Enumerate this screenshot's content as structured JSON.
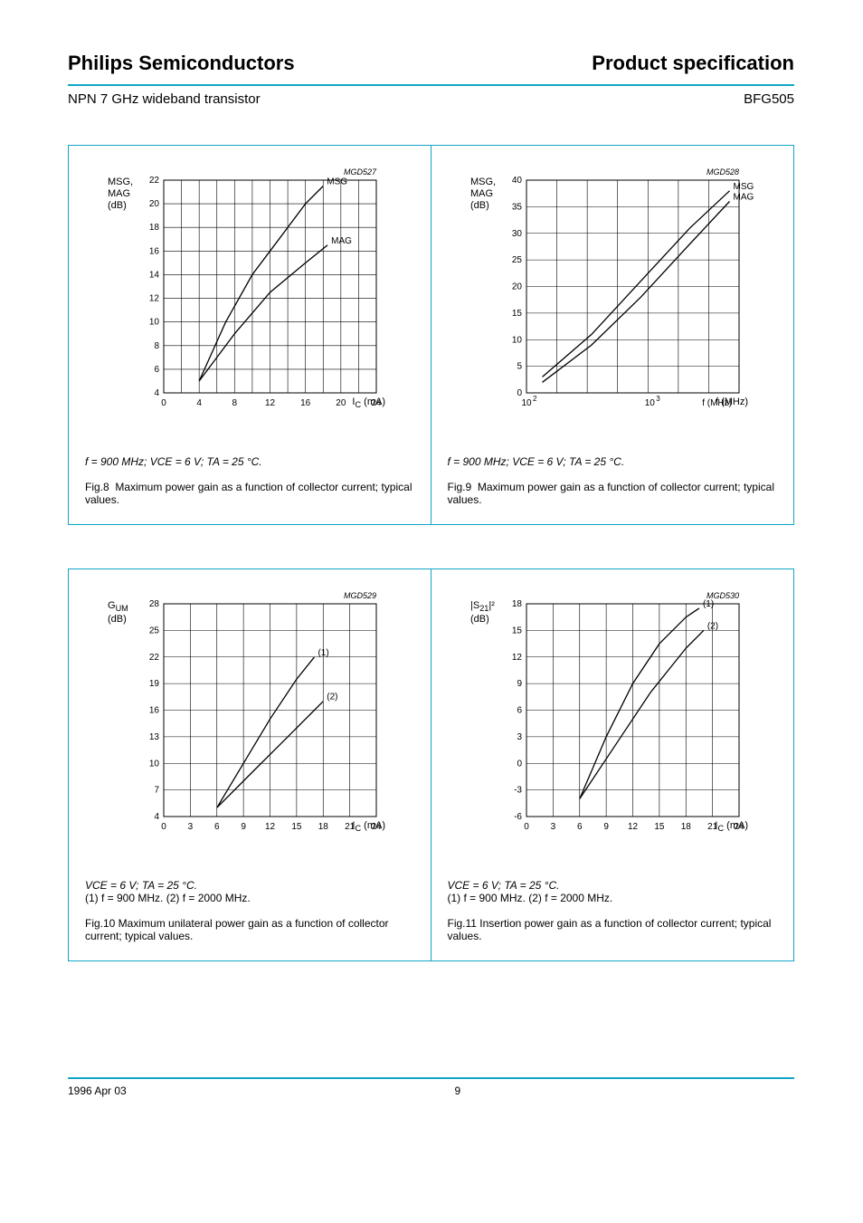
{
  "header": {
    "company": "Philips Semiconductors",
    "doc_type": "Product specification",
    "product_desc": "NPN 7 GHz wideband transistor",
    "part": "BFG505",
    "rule_color": "#11a6c7"
  },
  "footer": {
    "date": "1996 Apr 03",
    "page": "9"
  },
  "figs": [
    {
      "id": 8,
      "title_left_html": "MSG,<br>MAG<br>(dB)",
      "plot_ref": "MGD527",
      "x": {
        "label": "I_C (mA)",
        "min": 0,
        "max": 24,
        "step": 2
      },
      "y": {
        "min": 4,
        "max": 22,
        "step": 2
      },
      "grid_cols": 12,
      "grid_rows": 9,
      "curves": [
        {
          "label": "MSG",
          "points": [
            [
              4,
              5
            ],
            [
              7,
              10
            ],
            [
              10,
              14
            ],
            [
              13,
              17
            ],
            [
              16,
              20
            ],
            [
              18,
              21.5
            ]
          ]
        },
        {
          "label": "MAG",
          "points": [
            [
              4,
              5
            ],
            [
              8,
              9
            ],
            [
              12,
              12.5
            ],
            [
              16,
              15
            ],
            [
              18.5,
              16.5
            ]
          ]
        }
      ],
      "caption_html": "Fig.8  Maximum power gain as a function of collector current; typical values.",
      "conditions": "f = 900 MHz; VCE = 6 V; TA = 25 °C."
    },
    {
      "id": 9,
      "title_left_html": "MSG,<br>MAG<br>(dB)",
      "plot_ref": "MGD528",
      "x": {
        "label": "f (MHz)",
        "min": 200,
        "max": 4000,
        "log": true,
        "ticks": [
          "10^2",
          "10^3"
        ]
      },
      "y": {
        "min": 0,
        "max": 40,
        "step": 5
      },
      "grid_cols": 7,
      "grid_rows": 8,
      "curves": [
        {
          "label": "MSG",
          "points": [
            [
              250,
              3
            ],
            [
              500,
              11
            ],
            [
              1000,
              21
            ],
            [
              2000,
              31
            ],
            [
              3500,
              38
            ]
          ]
        },
        {
          "label": "MAG",
          "points": [
            [
              250,
              2
            ],
            [
              500,
              9
            ],
            [
              1000,
              18
            ],
            [
              2000,
              28
            ],
            [
              3500,
              36
            ]
          ]
        }
      ],
      "caption_html": "Fig.9  Maximum power gain as a function of collector current; typical values.",
      "conditions": "f = 900 MHz; VCE = 6 V; TA = 25 °C."
    },
    {
      "id": 10,
      "title_left_html": "G<sub>UM</sub><br>(dB)",
      "plot_ref": "MGD529",
      "x": {
        "label": "I_C (mA)",
        "min": 0,
        "max": 24,
        "step": 3
      },
      "y": {
        "min": 4,
        "max": 28,
        "step": 3
      },
      "grid_cols": 8,
      "grid_rows": 8,
      "curves": [
        {
          "label": "(1)",
          "points": [
            [
              6,
              5
            ],
            [
              9,
              10
            ],
            [
              12,
              15
            ],
            [
              15,
              19.5
            ],
            [
              17,
              22
            ]
          ]
        },
        {
          "label": "(2)",
          "points": [
            [
              6,
              5
            ],
            [
              10,
              9
            ],
            [
              14,
              13
            ],
            [
              17,
              16
            ],
            [
              18,
              17
            ]
          ]
        }
      ],
      "caption_html": "Fig.10 Maximum unilateral power gain as a function of collector current; typical values.",
      "conditions": "VCE = 6 V; TA = 25 °C.",
      "legend": "(1) f = 900 MHz.  (2) f = 2000 MHz."
    },
    {
      "id": 11,
      "title_left_html": "|S<sub>21</sub>|²<br>(dB)",
      "plot_ref": "MGD530",
      "x": {
        "label": "I_C (mA)",
        "min": 0,
        "max": 24,
        "step": 3
      },
      "y": {
        "min": -6,
        "max": 18,
        "step": 3
      },
      "grid_cols": 8,
      "grid_rows": 8,
      "curves": [
        {
          "label": "(1)",
          "points": [
            [
              6,
              -4
            ],
            [
              9,
              3
            ],
            [
              12,
              9
            ],
            [
              15,
              13.5
            ],
            [
              18,
              16.5
            ],
            [
              19.5,
              17.5
            ]
          ]
        },
        {
          "label": "(2)",
          "points": [
            [
              6,
              -4
            ],
            [
              10,
              2
            ],
            [
              14,
              8
            ],
            [
              18,
              13
            ],
            [
              20,
              15
            ]
          ]
        }
      ],
      "caption_html": "Fig.11 Insertion power gain as a function of collector current; typical values.",
      "conditions": "VCE = 6 V; TA = 25 °C.",
      "legend": "(1) f = 900 MHz.  (2) f = 2000 MHz."
    }
  ],
  "style": {
    "cell_border": "#11a6c7",
    "grid_color": "#000000",
    "line_color": "#000000",
    "bg": "#ffffff",
    "font_family": "Arial",
    "title_fontsize": 11,
    "tick_fontsize": 10,
    "caption_fontsize": 12,
    "line_width": 1.2
  }
}
